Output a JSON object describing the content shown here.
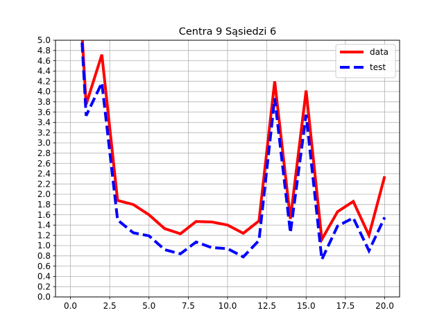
{
  "chart_data": {
    "type": "line",
    "title": "Centra 9 Sąsiedzi 6",
    "xlabel": "",
    "ylabel": "",
    "xlim": [
      -0.95,
      20.95
    ],
    "ylim": [
      0.0,
      5.0
    ],
    "x_ticks": [
      0,
      2.5,
      5,
      7.5,
      10,
      12.5,
      15,
      17.5,
      20
    ],
    "x_tick_labels": [
      "0.0",
      "2.5",
      "5.0",
      "7.5",
      "10.0",
      "12.5",
      "15.0",
      "17.5",
      "20.0"
    ],
    "y_ticks": [
      0,
      0.2,
      0.4,
      0.6,
      0.8,
      1.0,
      1.2,
      1.4,
      1.6,
      1.8,
      2.0,
      2.2,
      2.4,
      2.6,
      2.8,
      3.0,
      3.2,
      3.4,
      3.6,
      3.8,
      4.0,
      4.2,
      4.4,
      4.6,
      4.8,
      5.0
    ],
    "y_tick_labels": [
      "0.0",
      "0.2",
      "0.4",
      "0.6",
      "0.8",
      "1.0",
      "1.2",
      "1.4",
      "1.6",
      "1.8",
      "2.0",
      "2.2",
      "2.4",
      "2.6",
      "2.8",
      "3.0",
      "3.2",
      "3.4",
      "3.6",
      "3.8",
      "4.0",
      "4.2",
      "4.4",
      "4.6",
      "4.8",
      "5.0"
    ],
    "grid": true,
    "legend_position": "top-right",
    "x": [
      0,
      1,
      2,
      3,
      4,
      5,
      6,
      7,
      8,
      9,
      10,
      11,
      12,
      13,
      14,
      15,
      16,
      17,
      18,
      19,
      20
    ],
    "series": [
      {
        "name": "data",
        "color": "#ff0000",
        "style": "solid",
        "values": [
          9.0,
          3.75,
          4.72,
          1.88,
          1.8,
          1.6,
          1.33,
          1.23,
          1.47,
          1.46,
          1.4,
          1.24,
          1.48,
          4.2,
          1.52,
          4.02,
          1.12,
          1.66,
          1.86,
          1.2,
          2.35
        ]
      },
      {
        "name": "test",
        "color": "#0000ff",
        "style": "dashed",
        "values": [
          9.0,
          3.53,
          4.17,
          1.5,
          1.25,
          1.19,
          0.92,
          0.84,
          1.07,
          0.96,
          0.94,
          0.78,
          1.1,
          3.87,
          1.25,
          3.55,
          0.73,
          1.38,
          1.54,
          0.9,
          1.55
        ]
      }
    ]
  }
}
